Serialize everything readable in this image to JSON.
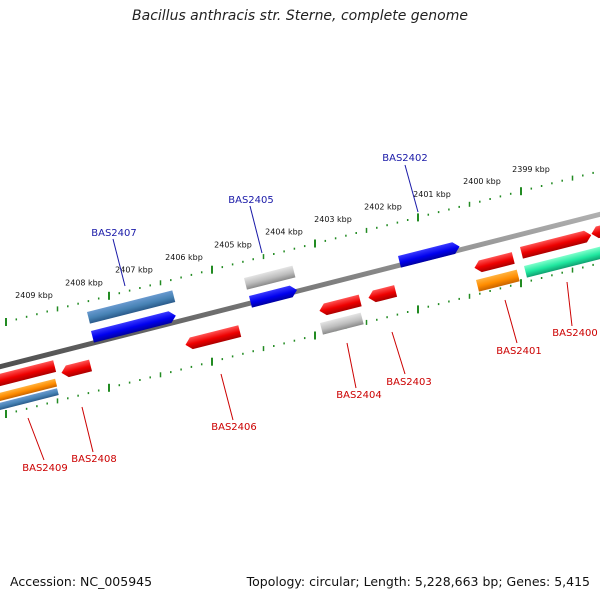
{
  "title": "Bacillus anthracis str. Sterne, complete genome",
  "footer": {
    "accession": "Accession: NC_005945",
    "summary": "Topology: circular; Length: 5,228,663 bp; Genes: 5,415"
  },
  "colors": {
    "backbone": "#808080",
    "tick": "#228b22",
    "label_forward": "#1a1aa8",
    "label_reverse": "#cc0000"
  },
  "scale_labels": [
    "2409 kbp",
    "2408 kbp",
    "2407 kbp",
    "2406 kbp",
    "2405 kbp",
    "2404 kbp",
    "2403 kbp",
    "2402 kbp",
    "2401 kbp",
    "2400 kbp",
    "2399 kbp"
  ],
  "gene_labels_forward": [
    "BAS2407",
    "BAS2405",
    "BAS2402"
  ],
  "gene_labels_reverse": [
    "BAS2409",
    "BAS2408",
    "BAS2406",
    "BAS2404",
    "BAS2403",
    "BAS2401",
    "BAS2400"
  ]
}
